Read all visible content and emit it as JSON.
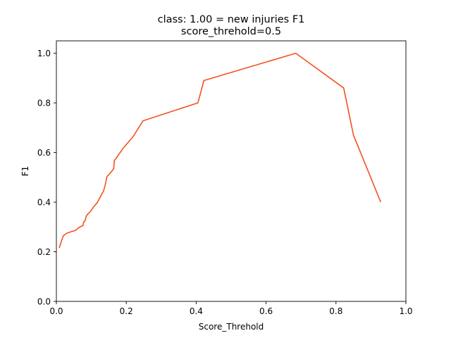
{
  "chart_data": {
    "type": "line",
    "title_line1": "class: 1.00 = new injuries F1",
    "title_line2": "score_threhold=0.5",
    "xlabel": "Score_Threhold",
    "ylabel": "F1",
    "xlim": [
      0,
      1.0
    ],
    "ylim": [
      0,
      1.05
    ],
    "x_ticks": [
      0.0,
      0.2,
      0.4,
      0.6,
      0.8,
      1.0
    ],
    "x_tick_labels": [
      "0.0",
      "0.2",
      "0.4",
      "0.6",
      "0.8",
      "1.0"
    ],
    "y_ticks": [
      0.0,
      0.2,
      0.4,
      0.6,
      0.8,
      1.0
    ],
    "y_tick_labels": [
      "0.0",
      "0.2",
      "0.4",
      "0.6",
      "0.8",
      "1.0"
    ],
    "grid": false,
    "series": [
      {
        "name": "F1",
        "color": "#f4511e",
        "x": [
          0.008,
          0.012,
          0.015,
          0.02,
          0.03,
          0.045,
          0.055,
          0.062,
          0.07,
          0.076,
          0.078,
          0.082,
          0.086,
          0.09,
          0.098,
          0.106,
          0.118,
          0.126,
          0.135,
          0.14,
          0.144,
          0.146,
          0.156,
          0.164,
          0.166,
          0.17,
          0.19,
          0.22,
          0.248,
          0.405,
          0.422,
          0.685,
          0.822,
          0.85,
          0.928
        ],
        "y": [
          0.215,
          0.232,
          0.245,
          0.265,
          0.275,
          0.282,
          0.286,
          0.295,
          0.302,
          0.305,
          0.32,
          0.325,
          0.345,
          0.352,
          0.363,
          0.38,
          0.4,
          0.422,
          0.445,
          0.47,
          0.5,
          0.505,
          0.52,
          0.535,
          0.568,
          0.575,
          0.615,
          0.665,
          0.728,
          0.8,
          0.89,
          1.0,
          0.86,
          0.67,
          0.4
        ]
      }
    ]
  }
}
